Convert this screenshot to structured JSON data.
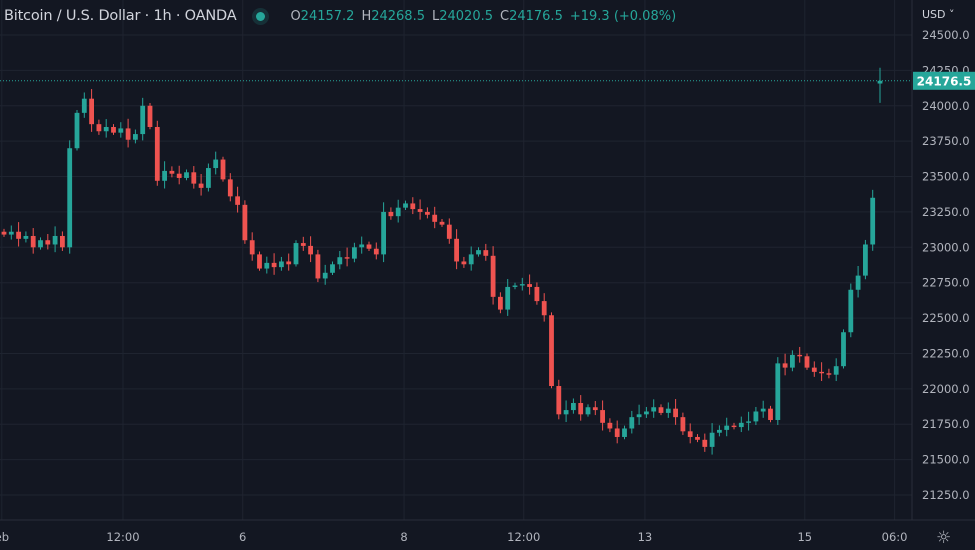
{
  "header": {
    "title": "Bitcoin / U.S. Dollar · 1h · OANDA",
    "o_label": "O",
    "o_value": "24157.2",
    "h_label": "H",
    "h_value": "24268.5",
    "l_label": "L",
    "l_value": "24020.5",
    "c_label": "C",
    "c_value": "24176.5",
    "change": "+19.3 (+0.08%)",
    "status_icon": "market-open-dot"
  },
  "price_axis": {
    "currency": "USD ˅",
    "settings_icon": "gear-icon"
  },
  "colors": {
    "background": "#131722",
    "up": "#26a69a",
    "down": "#ef5350",
    "grid": "#1f2430",
    "text": "#b2b5be"
  },
  "chart_data": {
    "type": "candlestick",
    "title": "Bitcoin / U.S. Dollar · 1h · OANDA",
    "ylim": [
      21125,
      24650
    ],
    "y_ticks": [
      24500,
      24250,
      24000,
      23750,
      23500,
      23250,
      23000,
      22750,
      22500,
      22250,
      22000,
      21750,
      21500,
      21250
    ],
    "y_tick_labels": [
      "24500.0",
      "24250.0",
      "24000.0",
      "23750.0",
      "23500.0",
      "23250.0",
      "23000.0",
      "22750.0",
      "22500.0",
      "22250.0",
      "22000.0",
      "21750.0",
      "21500.0",
      "21250.0"
    ],
    "last_price": 24176.5,
    "last_price_label": "24176.5",
    "x_ticks": [
      {
        "index": -0.3,
        "label": "eb"
      },
      {
        "index": 16.3,
        "label": "12:00"
      },
      {
        "index": 32.7,
        "label": "6"
      },
      {
        "index": 54.8,
        "label": "8"
      },
      {
        "index": 71.2,
        "label": "12:00"
      },
      {
        "index": 87.8,
        "label": "13"
      },
      {
        "index": 109.7,
        "label": "15"
      },
      {
        "index": 122,
        "label": "06:0"
      }
    ],
    "closes": [
      23090,
      23110,
      23060,
      23080,
      23000,
      23050,
      23020,
      23080,
      23000,
      23700,
      23950,
      24050,
      23870,
      23820,
      23850,
      23810,
      23840,
      23760,
      23800,
      24000,
      23850,
      23470,
      23540,
      23520,
      23490,
      23530,
      23450,
      23420,
      23560,
      23620,
      23480,
      23360,
      23300,
      23050,
      22950,
      22850,
      22890,
      22860,
      22900,
      22880,
      23030,
      23010,
      22950,
      22780,
      22820,
      22880,
      22930,
      22920,
      23000,
      23020,
      22990,
      22950,
      23250,
      23220,
      23280,
      23310,
      23270,
      23250,
      23230,
      23180,
      23160,
      23060,
      22900,
      22880,
      22950,
      22980,
      22940,
      22650,
      22560,
      22720,
      22730,
      22740,
      22720,
      22620,
      22520,
      22020,
      21820,
      21850,
      21900,
      21820,
      21870,
      21850,
      21760,
      21720,
      21660,
      21720,
      21800,
      21820,
      21840,
      21870,
      21830,
      21860,
      21800,
      21700,
      21660,
      21640,
      21590,
      21690,
      21710,
      21740,
      21730,
      21760,
      21770,
      21840,
      21860,
      21780,
      22180,
      22150,
      22240,
      22230,
      22150,
      22120,
      22110,
      22100,
      22160,
      22400,
      22700,
      22800,
      23020,
      23350
    ],
    "last_candle": {
      "open": 24157.2,
      "high": 24268.5,
      "low": 24020.5,
      "close": 24176.5
    }
  }
}
